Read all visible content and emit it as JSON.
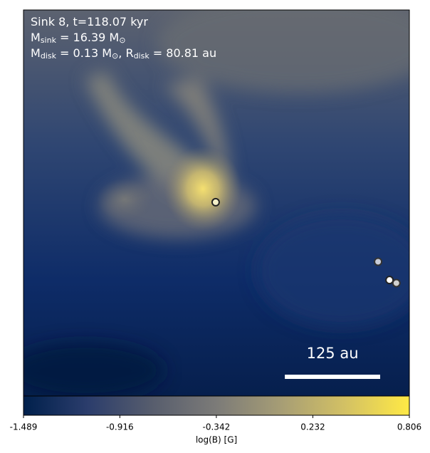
{
  "chart_data": {
    "type": "image",
    "annotation_lines": [
      [
        {
          "text": "Sink 8, t=118.07 kyr"
        }
      ],
      [
        {
          "text": "M"
        },
        {
          "sub": "sink"
        },
        {
          "text": " = 16.39 M"
        },
        {
          "sub": "⊙"
        }
      ],
      [
        {
          "text": "M"
        },
        {
          "sub": "disk"
        },
        {
          "text": " = 0.13 M"
        },
        {
          "sub": "⊙"
        },
        {
          "text": ", R"
        },
        {
          "sub": "disk"
        },
        {
          "text": " = 80.81 au"
        }
      ]
    ],
    "xlim": [
      -253,
      253
    ],
    "ylim": [
      -253,
      253
    ],
    "sinks": {
      "x": [
        -1,
        212,
        227,
        236
      ],
      "y": [
        1,
        -77,
        -101,
        -105
      ],
      "edge_colors": [
        "#222222",
        "#333333",
        "#222222",
        "#333333"
      ],
      "face_colors": [
        "#f4f0c8",
        "#c8ccd8",
        "#ffffff",
        "#d0d0d0"
      ]
    },
    "scale_bar": {
      "value": 125,
      "label": "125 au"
    },
    "colorbar": {
      "label": "log(B) [G]",
      "clim": [
        -1.489,
        0.806
      ],
      "ticks": [
        -1.489,
        -0.916,
        -0.342,
        0.232,
        0.806
      ],
      "colormap": [
        "#00204c",
        "#2b3d6c",
        "#575d6d",
        "#7c7b78",
        "#a69d75",
        "#d3c164",
        "#ffe945"
      ]
    }
  }
}
